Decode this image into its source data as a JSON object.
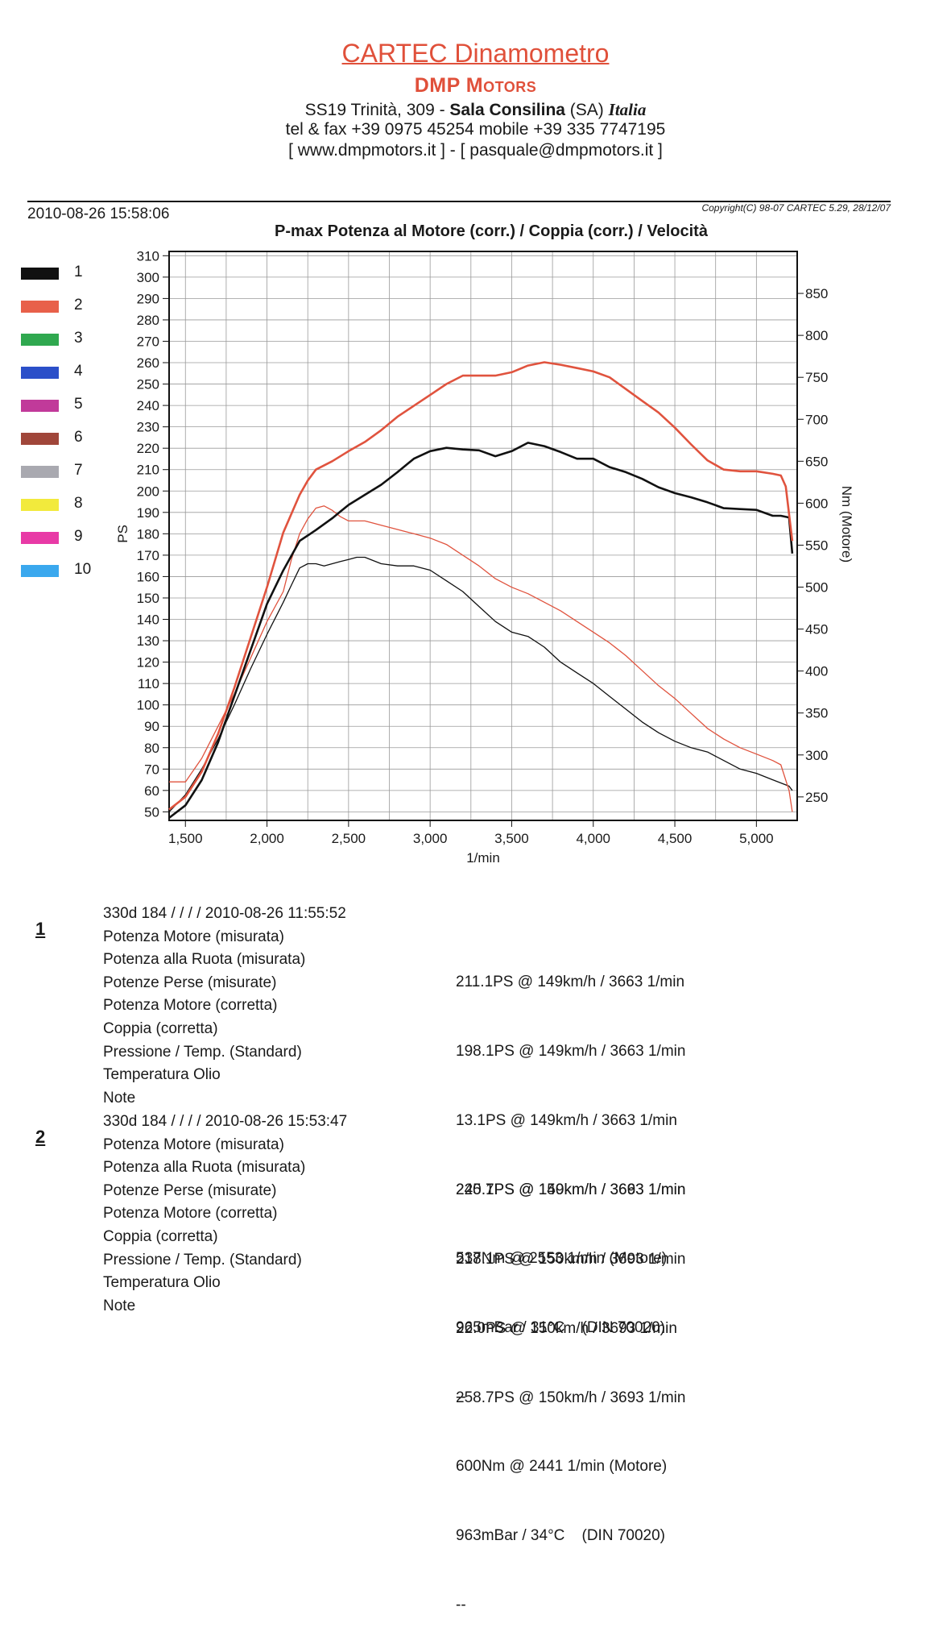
{
  "header": {
    "brand": "CARTEC Dinamometro",
    "subtitle": "DMP Motors",
    "address_plain": "SS19 Trinità, 309 - ",
    "address_city": "Sala Consilina",
    "address_prov": " (SA) ",
    "address_country": "Italia",
    "phone": "tel & fax +39 0975 45254 mobile +39 335 7747195",
    "web": "[ www.dmpmotors.it ] - [ pasquale@dmpmotors.it ]"
  },
  "meta": {
    "timestamp": "2010-08-26 15:58:06",
    "copyright": "Copyright(C) 98-07 CARTEC 5.29, 28/12/07"
  },
  "legend": [
    {
      "label": "1",
      "color": "#111111"
    },
    {
      "label": "2",
      "color": "#e8604a"
    },
    {
      "label": "3",
      "color": "#2fa84f"
    },
    {
      "label": "4",
      "color": "#2b4fc9"
    },
    {
      "label": "5",
      "color": "#c13a9a"
    },
    {
      "label": "6",
      "color": "#a0463a"
    },
    {
      "label": "7",
      "color": "#a9a9b0"
    },
    {
      "label": "8",
      "color": "#f2ea3c"
    },
    {
      "label": "9",
      "color": "#e83aa6"
    },
    {
      "label": "10",
      "color": "#3aa8ee"
    }
  ],
  "chart_data": {
    "type": "line",
    "title": "P-max Potenza al Motore (corr.) / Coppia (corr.) / Velocità",
    "xlabel": "1/min",
    "ylabel": "PS",
    "y2label": "Nm (Motore)",
    "xlim": [
      1400,
      5250
    ],
    "ylim": [
      46,
      312
    ],
    "y2lim": [
      222,
      900
    ],
    "xticks": [
      1500,
      2000,
      2500,
      3000,
      3500,
      4000,
      4500,
      5000
    ],
    "xtick_labels": [
      "1,500",
      "2,000",
      "2,500",
      "3,000",
      "3,500",
      "4,000",
      "4,500",
      "5,000"
    ],
    "yticks": [
      50,
      60,
      70,
      80,
      90,
      100,
      110,
      120,
      130,
      140,
      150,
      160,
      170,
      180,
      190,
      200,
      210,
      220,
      230,
      240,
      250,
      260,
      270,
      280,
      290,
      300,
      310
    ],
    "y2ticks": [
      250,
      300,
      350,
      400,
      450,
      500,
      550,
      600,
      650,
      700,
      750,
      800,
      850
    ],
    "grid": true,
    "series": [
      {
        "run": "1",
        "measure": "power",
        "axis": "left",
        "color": "#111111",
        "width": 1.3,
        "x": [
          1400,
          1500,
          1600,
          1700,
          1800,
          1900,
          2000,
          2100,
          2150,
          2200,
          2250,
          2300,
          2350,
          2400,
          2450,
          2500,
          2550,
          2600,
          2700,
          2800,
          2900,
          3000,
          3100,
          3200,
          3300,
          3400,
          3500,
          3600,
          3700,
          3800,
          3900,
          4000,
          4100,
          4200,
          4300,
          4400,
          4500,
          4600,
          4700,
          4800,
          4900,
          5000,
          5100,
          5200,
          5220
        ],
        "y": [
          50,
          58,
          70,
          84,
          100,
          117,
          133,
          148,
          156,
          164,
          166,
          166,
          165,
          166,
          167,
          168,
          169,
          169,
          166,
          165,
          165,
          163,
          158,
          153,
          146,
          139,
          134,
          132,
          127,
          120,
          115,
          110,
          104,
          98,
          92,
          87,
          83,
          80,
          78,
          74,
          70,
          68,
          65,
          62,
          60
        ]
      },
      {
        "run": "2",
        "measure": "power",
        "axis": "left",
        "color": "#e0533e",
        "width": 1.3,
        "x": [
          1400,
          1500,
          1600,
          1700,
          1800,
          1900,
          2000,
          2100,
          2150,
          2200,
          2250,
          2300,
          2350,
          2400,
          2450,
          2500,
          2600,
          2700,
          2800,
          2900,
          3000,
          3100,
          3200,
          3300,
          3400,
          3500,
          3600,
          3700,
          3800,
          3900,
          4000,
          4100,
          4200,
          4300,
          4400,
          4500,
          4600,
          4700,
          4800,
          4900,
          5000,
          5100,
          5150,
          5200,
          5220
        ],
        "y": [
          64,
          64,
          75,
          90,
          105,
          122,
          139,
          153,
          168,
          180,
          187,
          192,
          193,
          191,
          188,
          186,
          186,
          184,
          182,
          180,
          178,
          175,
          170,
          165,
          159,
          155,
          152,
          148,
          144,
          139,
          134,
          129,
          123,
          116,
          109,
          103,
          96,
          89,
          84,
          80,
          77,
          74,
          72,
          60,
          50
        ]
      },
      {
        "run": "1",
        "measure": "torque",
        "axis": "right",
        "color": "#111111",
        "width": 2.6,
        "x": [
          1400,
          1500,
          1600,
          1700,
          1800,
          1900,
          2000,
          2100,
          2200,
          2300,
          2400,
          2450,
          2500,
          2600,
          2700,
          2800,
          2900,
          3000,
          3100,
          3200,
          3300,
          3400,
          3500,
          3600,
          3700,
          3800,
          3900,
          4000,
          4100,
          4200,
          4300,
          4400,
          4500,
          4600,
          4700,
          4800,
          4900,
          5000,
          5100,
          5150,
          5200,
          5220
        ],
        "y": [
          225,
          240,
          270,
          315,
          370,
          425,
          480,
          520,
          555,
          568,
          582,
          590,
          598,
          610,
          622,
          637,
          653,
          662,
          666,
          664,
          663,
          656,
          662,
          672,
          668,
          661,
          653,
          653,
          643,
          637,
          629,
          619,
          612,
          607,
          601,
          594,
          593,
          592,
          585,
          585,
          583,
          540
        ]
      },
      {
        "run": "2",
        "measure": "torque",
        "axis": "right",
        "color": "#e0533e",
        "width": 2.6,
        "x": [
          1400,
          1500,
          1600,
          1700,
          1800,
          1900,
          2000,
          2100,
          2200,
          2250,
          2300,
          2400,
          2500,
          2600,
          2700,
          2800,
          2900,
          3000,
          3100,
          3200,
          3300,
          3400,
          3500,
          3600,
          3700,
          3800,
          3900,
          4000,
          4100,
          4200,
          4300,
          4400,
          4500,
          4600,
          4700,
          4800,
          4900,
          5000,
          5100,
          5150,
          5180,
          5220
        ],
        "y": [
          235,
          250,
          280,
          325,
          380,
          440,
          500,
          565,
          610,
          627,
          640,
          650,
          662,
          673,
          687,
          703,
          716,
          729,
          742,
          752,
          752,
          752,
          756,
          764,
          768,
          765,
          761,
          757,
          750,
          736,
          722,
          708,
          690,
          670,
          651,
          640,
          638,
          638,
          635,
          633,
          620,
          555
        ]
      }
    ]
  },
  "records": [
    {
      "num": "1",
      "head": "330d 184 /  /  /  / 2010-08-26 11:55:52",
      "labels": [
        "Potenza Motore (misurata)",
        "Potenza alla Ruota (misurata)",
        "Potenze Perse (misurate)",
        "Potenza Motore (corretta)",
        "Coppia (corretta)",
        "Pressione / Temp. (Standard)",
        "Temperatura Olio",
        "Note"
      ],
      "values": [
        "211.1PS @ 149km/h / 3663 1/min",
        "198.1PS @ 149km/h / 3663 1/min",
        "13.1PS @ 149km/h / 3663 1/min",
        "225.7PS @ 149km/h / 3663 1/min",
        "537Nm @ 2553 1/min (Motore)",
        "965mBar / 31°C    (DIN 70020)",
        "--",
        ""
      ]
    },
    {
      "num": "2",
      "head": "330d 184 /  /  /  / 2010-08-26 15:53:47",
      "labels": [
        "Potenza Motore (misurata)",
        "Potenza alla Ruota (misurata)",
        "Potenze Perse (misurate)",
        "Potenza Motore (corretta)",
        "Coppia (corretta)",
        "Pressione / Temp. (Standard)",
        "Temperatura Olio",
        "Note"
      ],
      "values": [
        "240.1PS @ 150km/h / 3693 1/min",
        "218.1PS @ 150km/h / 3693 1/min",
        "22.0PS @ 150km/h / 3693 1/min",
        "258.7PS @ 150km/h / 3693 1/min",
        "600Nm @ 2441 1/min (Motore)",
        "963mBar / 34°C    (DIN 70020)",
        "--",
        ""
      ]
    }
  ]
}
